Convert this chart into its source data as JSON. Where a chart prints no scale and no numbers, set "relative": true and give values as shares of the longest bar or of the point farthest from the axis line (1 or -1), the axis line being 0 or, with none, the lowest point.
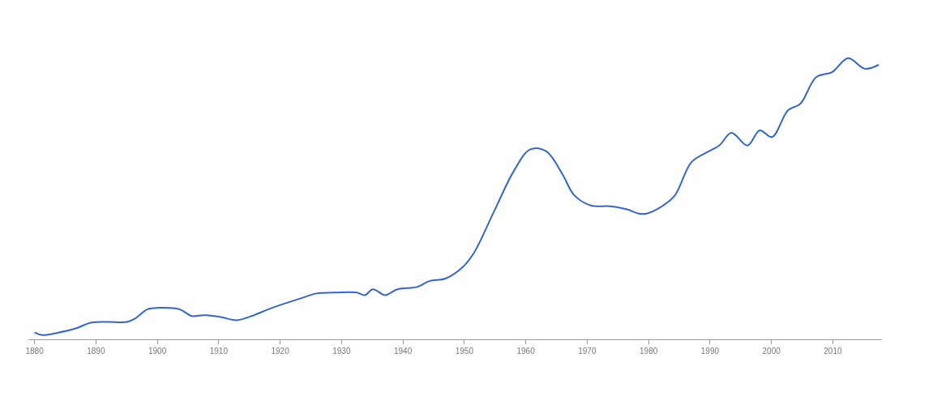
{
  "chart_data": {
    "type": "line",
    "relative": true,
    "color": "#3366cc",
    "x": [
      1880,
      1881.3,
      1883.9,
      1886.6,
      1889.2,
      1891.8,
      1895.1,
      1896.4,
      1898.4,
      1900.3,
      1903.6,
      1905.6,
      1907.6,
      1910.2,
      1912.9,
      1915.4,
      1918.1,
      1920.7,
      1923.3,
      1925.9,
      1928.6,
      1932.5,
      1933.8,
      1935.1,
      1937.1,
      1939.1,
      1942.3,
      1944.3,
      1946.9,
      1949.6,
      1951.5,
      1954.8,
      1958.1,
      1960.7,
      1963.3,
      1966,
      1967.9,
      1970.6,
      1973.8,
      1976.5,
      1978.4,
      1979.7,
      1982.4,
      1984.3,
      1987,
      1989.6,
      1991.5,
      1993.5,
      1996.1,
      1998.1,
      2000.1,
      2002.7,
      2004.7,
      2007.3,
      2009.9,
      2012.5,
      2015.2,
      2017.5
    ],
    "values": [
      0.024,
      0.015,
      0.024,
      0.038,
      0.059,
      0.062,
      0.062,
      0.074,
      0.107,
      0.112,
      0.107,
      0.083,
      0.086,
      0.08,
      0.068,
      0.083,
      0.107,
      0.127,
      0.145,
      0.163,
      0.166,
      0.166,
      0.157,
      0.178,
      0.157,
      0.178,
      0.186,
      0.207,
      0.216,
      0.254,
      0.305,
      0.453,
      0.6,
      0.675,
      0.669,
      0.586,
      0.512,
      0.476,
      0.473,
      0.462,
      0.447,
      0.447,
      0.476,
      0.512,
      0.63,
      0.666,
      0.689,
      0.734,
      0.689,
      0.743,
      0.719,
      0.814,
      0.837,
      0.932,
      0.95,
      1.0,
      0.962,
      0.976
    ],
    "xlim": [
      1879,
      2018
    ],
    "xticks": [
      1880,
      1890,
      1900,
      1910,
      1920,
      1930,
      1940,
      1950,
      1960,
      1970,
      1980,
      1990,
      2000,
      2010
    ],
    "legend": false
  }
}
